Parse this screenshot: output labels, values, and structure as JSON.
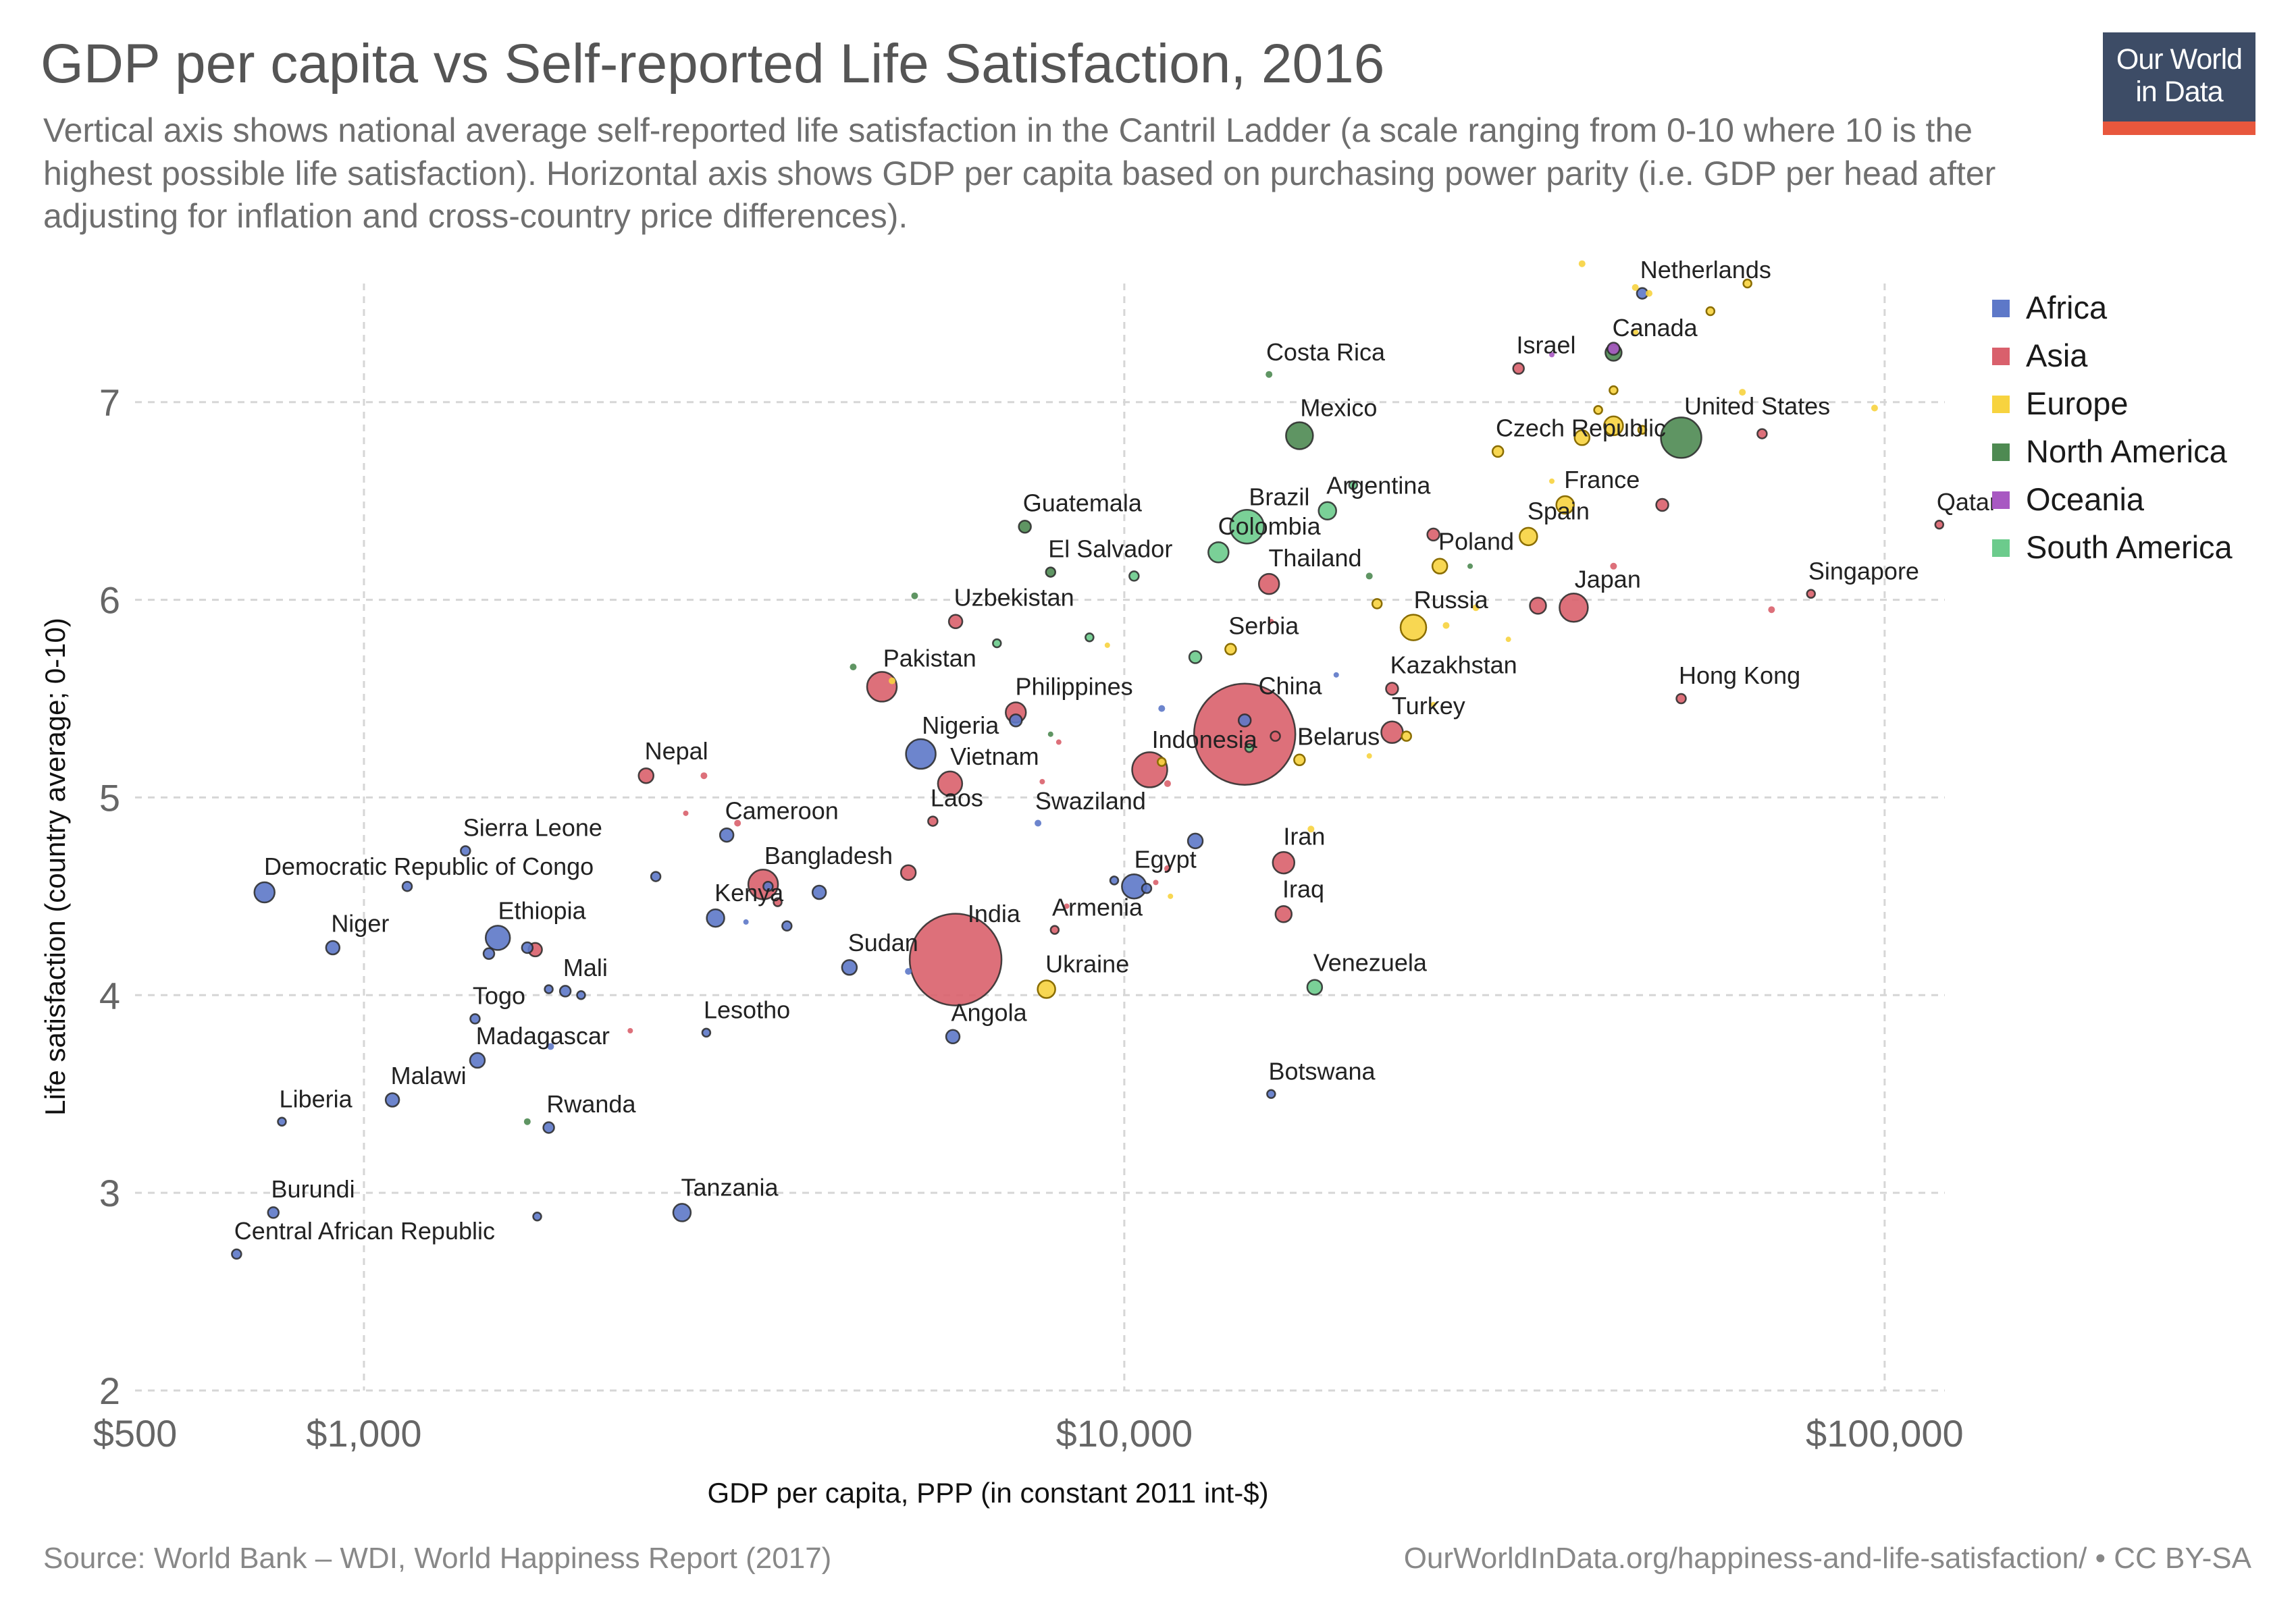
{
  "title": "GDP per capita vs Self-reported Life Satisfaction, 2016",
  "subtitle": "Vertical axis shows national average self-reported life satisfaction in the Cantril Ladder (a scale ranging from 0-10 where 10 is the highest possible life satisfaction). Horizontal axis shows GDP per capita based on purchasing power parity (i.e. GDP per head after adjusting for inflation and cross-country price differences).",
  "logo": {
    "line1": "Our World",
    "line2": "in Data"
  },
  "source": "Source: World Bank – WDI, World Happiness Report (2017)",
  "url": "OurWorldInData.org/happiness-and-life-satisfaction/ • CC BY-SA",
  "chart_data": {
    "type": "scatter",
    "title": "GDP per capita vs Self-reported Life Satisfaction, 2016",
    "xlabel": "GDP per capita, PPP (in constant 2011 int-$)",
    "ylabel": "Life satisfaction (country average; 0-10)",
    "x_scale": "log",
    "xlim": [
      500,
      120000
    ],
    "ylim": [
      2,
      7.6
    ],
    "x_ticks": [
      {
        "value": 500,
        "label": "$500"
      },
      {
        "value": 1000,
        "label": "$1,000"
      },
      {
        "value": 10000,
        "label": "$10,000"
      },
      {
        "value": 100000,
        "label": "$100,000"
      }
    ],
    "y_ticks": [
      {
        "value": 2,
        "label": "2"
      },
      {
        "value": 3,
        "label": "3"
      },
      {
        "value": 4,
        "label": "4"
      },
      {
        "value": 5,
        "label": "5"
      },
      {
        "value": 6,
        "label": "6"
      },
      {
        "value": 7,
        "label": "7"
      }
    ],
    "grid": true,
    "legend_position": "top-right",
    "series": [
      {
        "name": "Africa",
        "color": "#5d78c8"
      },
      {
        "name": "Asia",
        "color": "#d9606c"
      },
      {
        "name": "Europe",
        "color": "#f7d33f"
      },
      {
        "name": "North America",
        "color": "#4e8a52"
      },
      {
        "name": "Oceania",
        "color": "#a858c2"
      },
      {
        "name": "South America",
        "color": "#6ccb8c"
      }
    ],
    "points": [
      {
        "label": "Netherlands",
        "x": 48000,
        "y": 7.55,
        "s": 0,
        "size": 8
      },
      {
        "label": "Canada",
        "x": 44000,
        "y": 7.25,
        "s": 3,
        "size": 12
      },
      {
        "label": "Israel",
        "x": 33000,
        "y": 7.17,
        "s": 1,
        "size": 8
      },
      {
        "label": "Costa Rica",
        "x": 15500,
        "y": 7.14,
        "s": 3,
        "size": 5
      },
      {
        "label": "United States",
        "x": 54000,
        "y": 6.82,
        "s": 3,
        "size": 30
      },
      {
        "label": "Mexico",
        "x": 17000,
        "y": 6.83,
        "s": 3,
        "size": 20
      },
      {
        "label": "Czech Republic",
        "x": 31000,
        "y": 6.75,
        "s": 2,
        "size": 8
      },
      {
        "label": "Argentina",
        "x": 18500,
        "y": 6.45,
        "s": 5,
        "size": 13
      },
      {
        "label": "Brazil",
        "x": 14500,
        "y": 6.37,
        "s": 5,
        "size": 25
      },
      {
        "label": "Guatemala",
        "x": 7400,
        "y": 6.37,
        "s": 3,
        "size": 9
      },
      {
        "label": "France",
        "x": 38000,
        "y": 6.48,
        "s": 2,
        "size": 13
      },
      {
        "label": "Spain",
        "x": 34000,
        "y": 6.32,
        "s": 2,
        "size": 13
      },
      {
        "label": "Colombia",
        "x": 13300,
        "y": 6.24,
        "s": 5,
        "size": 15
      },
      {
        "label": "El Salvador",
        "x": 8000,
        "y": 6.14,
        "s": 3,
        "size": 7
      },
      {
        "label": "Poland",
        "x": 26000,
        "y": 6.17,
        "s": 2,
        "size": 11
      },
      {
        "label": "Thailand",
        "x": 15500,
        "y": 6.08,
        "s": 1,
        "size": 15
      },
      {
        "label": "Japan",
        "x": 39000,
        "y": 5.96,
        "s": 1,
        "size": 21
      },
      {
        "label": "Singapore",
        "x": 80000,
        "y": 6.03,
        "s": 1,
        "size": 6
      },
      {
        "label": "Qatar",
        "x": 118000,
        "y": 6.38,
        "s": 1,
        "size": 6
      },
      {
        "label": "Russia",
        "x": 24000,
        "y": 5.86,
        "s": 2,
        "size": 19
      },
      {
        "label": "Uzbekistan",
        "x": 6000,
        "y": 5.89,
        "s": 1,
        "size": 10
      },
      {
        "label": "Serbia",
        "x": 13800,
        "y": 5.75,
        "s": 2,
        "size": 8
      },
      {
        "label": "Pakistan",
        "x": 4800,
        "y": 5.56,
        "s": 1,
        "size": 22
      },
      {
        "label": "Kazakhstan",
        "x": 22500,
        "y": 5.55,
        "s": 1,
        "size": 9
      },
      {
        "label": "Hong Kong",
        "x": 54000,
        "y": 5.5,
        "s": 1,
        "size": 7
      },
      {
        "label": "Philippines",
        "x": 7200,
        "y": 5.43,
        "s": 1,
        "size": 15
      },
      {
        "label": "China",
        "x": 14400,
        "y": 5.32,
        "s": 1,
        "size": 75
      },
      {
        "label": "Turkey",
        "x": 22500,
        "y": 5.33,
        "s": 1,
        "size": 16
      },
      {
        "label": "Nigeria",
        "x": 5400,
        "y": 5.22,
        "s": 0,
        "size": 22
      },
      {
        "label": "Belarus",
        "x": 17000,
        "y": 5.19,
        "s": 2,
        "size": 8
      },
      {
        "label": "Indonesia",
        "x": 10800,
        "y": 5.14,
        "s": 1,
        "size": 26
      },
      {
        "label": "Nepal",
        "x": 2350,
        "y": 5.11,
        "s": 1,
        "size": 11
      },
      {
        "label": "Vietnam",
        "x": 5900,
        "y": 5.07,
        "s": 1,
        "size": 18
      },
      {
        "label": "Laos",
        "x": 5600,
        "y": 4.88,
        "s": 1,
        "size": 7
      },
      {
        "label": "Swaziland",
        "x": 7700,
        "y": 4.87,
        "s": 0,
        "size": 5
      },
      {
        "label": "Cameroon",
        "x": 3000,
        "y": 4.81,
        "s": 0,
        "size": 10
      },
      {
        "label": "Sierra Leone",
        "x": 1360,
        "y": 4.73,
        "s": 0,
        "size": 7
      },
      {
        "label": "Iran",
        "x": 16200,
        "y": 4.67,
        "s": 1,
        "size": 16
      },
      {
        "label": "Egypt",
        "x": 10300,
        "y": 4.55,
        "s": 0,
        "size": 18
      },
      {
        "label": "Bangladesh",
        "x": 3350,
        "y": 4.56,
        "s": 1,
        "size": 22
      },
      {
        "label": "Democratic Republic of Congo",
        "x": 740,
        "y": 4.52,
        "s": 0,
        "size": 15
      },
      {
        "label": "Kenya",
        "x": 2900,
        "y": 4.39,
        "s": 0,
        "size": 13
      },
      {
        "label": "Iraq",
        "x": 16200,
        "y": 4.41,
        "s": 1,
        "size": 12
      },
      {
        "label": "India",
        "x": 6000,
        "y": 4.18,
        "s": 1,
        "size": 68
      },
      {
        "label": "Ethiopia",
        "x": 1500,
        "y": 4.29,
        "s": 0,
        "size": 18
      },
      {
        "label": "Armenia",
        "x": 8100,
        "y": 4.33,
        "s": 1,
        "size": 6
      },
      {
        "label": "Niger",
        "x": 910,
        "y": 4.24,
        "s": 0,
        "size": 10
      },
      {
        "label": "Sudan",
        "x": 4350,
        "y": 4.14,
        "s": 0,
        "size": 11
      },
      {
        "label": "Venezuela",
        "x": 17800,
        "y": 4.04,
        "s": 5,
        "size": 11
      },
      {
        "label": "Mali",
        "x": 1840,
        "y": 4.02,
        "s": 0,
        "size": 8
      },
      {
        "label": "Ukraine",
        "x": 7900,
        "y": 4.03,
        "s": 2,
        "size": 13
      },
      {
        "label": "Togo",
        "x": 1400,
        "y": 3.88,
        "s": 0,
        "size": 7
      },
      {
        "label": "Lesotho",
        "x": 2820,
        "y": 3.81,
        "s": 0,
        "size": 6
      },
      {
        "label": "Angola",
        "x": 5950,
        "y": 3.79,
        "s": 0,
        "size": 10
      },
      {
        "label": "Madagascar",
        "x": 1410,
        "y": 3.67,
        "s": 0,
        "size": 11
      },
      {
        "label": "Malawi",
        "x": 1090,
        "y": 3.47,
        "s": 0,
        "size": 10
      },
      {
        "label": "Botswana",
        "x": 15600,
        "y": 3.5,
        "s": 0,
        "size": 6
      },
      {
        "label": "Liberia",
        "x": 780,
        "y": 3.36,
        "s": 0,
        "size": 6
      },
      {
        "label": "Rwanda",
        "x": 1750,
        "y": 3.33,
        "s": 0,
        "size": 8
      },
      {
        "label": "Tanzania",
        "x": 2620,
        "y": 2.9,
        "s": 0,
        "size": 13
      },
      {
        "label": "Burundi",
        "x": 760,
        "y": 2.9,
        "s": 0,
        "size": 8
      },
      {
        "label": "Central African Republic",
        "x": 680,
        "y": 2.69,
        "s": 0,
        "size": 7
      },
      {
        "label": "",
        "x": 40000,
        "y": 7.7,
        "s": 2,
        "size": 5
      },
      {
        "label": "",
        "x": 47000,
        "y": 7.58,
        "s": 2,
        "size": 5
      },
      {
        "label": "",
        "x": 49000,
        "y": 7.55,
        "s": 2,
        "size": 5
      },
      {
        "label": "",
        "x": 66000,
        "y": 7.6,
        "s": 2,
        "size": 6
      },
      {
        "label": "",
        "x": 59000,
        "y": 7.46,
        "s": 2,
        "size": 6
      },
      {
        "label": "",
        "x": 44000,
        "y": 7.27,
        "s": 4,
        "size": 9
      },
      {
        "label": "",
        "x": 47000,
        "y": 7.35,
        "s": 2,
        "size": 5
      },
      {
        "label": "",
        "x": 36500,
        "y": 7.24,
        "s": 4,
        "size": 4
      },
      {
        "label": "",
        "x": 44000,
        "y": 7.06,
        "s": 2,
        "size": 6
      },
      {
        "label": "",
        "x": 65000,
        "y": 7.05,
        "s": 2,
        "size": 5
      },
      {
        "label": "",
        "x": 42000,
        "y": 6.96,
        "s": 2,
        "size": 6
      },
      {
        "label": "",
        "x": 40000,
        "y": 6.82,
        "s": 2,
        "size": 11
      },
      {
        "label": "",
        "x": 44000,
        "y": 6.88,
        "s": 2,
        "size": 14
      },
      {
        "label": "",
        "x": 48000,
        "y": 6.86,
        "s": 2,
        "size": 6
      },
      {
        "label": "",
        "x": 69000,
        "y": 6.84,
        "s": 1,
        "size": 7
      },
      {
        "label": "",
        "x": 97000,
        "y": 6.97,
        "s": 2,
        "size": 5
      },
      {
        "label": "",
        "x": 36500,
        "y": 6.6,
        "s": 2,
        "size": 4
      },
      {
        "label": "",
        "x": 51000,
        "y": 6.48,
        "s": 1,
        "size": 9
      },
      {
        "label": "",
        "x": 20000,
        "y": 6.58,
        "s": 5,
        "size": 6
      },
      {
        "label": "",
        "x": 25500,
        "y": 6.33,
        "s": 1,
        "size": 9
      },
      {
        "label": "",
        "x": 28500,
        "y": 6.17,
        "s": 3,
        "size": 4
      },
      {
        "label": "",
        "x": 21000,
        "y": 6.12,
        "s": 3,
        "size": 5
      },
      {
        "label": "",
        "x": 44000,
        "y": 6.17,
        "s": 1,
        "size": 5
      },
      {
        "label": "",
        "x": 10300,
        "y": 6.12,
        "s": 5,
        "size": 7
      },
      {
        "label": "",
        "x": 5300,
        "y": 6.02,
        "s": 3,
        "size": 5
      },
      {
        "label": "",
        "x": 21500,
        "y": 5.98,
        "s": 2,
        "size": 7
      },
      {
        "label": "",
        "x": 35000,
        "y": 5.97,
        "s": 1,
        "size": 12
      },
      {
        "label": "",
        "x": 29000,
        "y": 5.96,
        "s": 2,
        "size": 5
      },
      {
        "label": "",
        "x": 71000,
        "y": 5.95,
        "s": 1,
        "size": 5
      },
      {
        "label": "",
        "x": 15600,
        "y": 5.89,
        "s": 1,
        "size": 4
      },
      {
        "label": "",
        "x": 26500,
        "y": 5.87,
        "s": 2,
        "size": 5
      },
      {
        "label": "",
        "x": 32000,
        "y": 5.8,
        "s": 2,
        "size": 4
      },
      {
        "label": "",
        "x": 9000,
        "y": 5.81,
        "s": 5,
        "size": 6
      },
      {
        "label": "",
        "x": 9500,
        "y": 5.77,
        "s": 2,
        "size": 4
      },
      {
        "label": "",
        "x": 6800,
        "y": 5.78,
        "s": 5,
        "size": 6
      },
      {
        "label": "",
        "x": 12400,
        "y": 5.71,
        "s": 5,
        "size": 9
      },
      {
        "label": "",
        "x": 4400,
        "y": 5.66,
        "s": 3,
        "size": 5
      },
      {
        "label": "",
        "x": 19000,
        "y": 5.62,
        "s": 0,
        "size": 4
      },
      {
        "label": "",
        "x": 4950,
        "y": 5.59,
        "s": 2,
        "size": 5
      },
      {
        "label": "",
        "x": 11200,
        "y": 5.45,
        "s": 0,
        "size": 5
      },
      {
        "label": "",
        "x": 25500,
        "y": 5.47,
        "s": 2,
        "size": 4
      },
      {
        "label": "",
        "x": 7200,
        "y": 5.39,
        "s": 0,
        "size": 9
      },
      {
        "label": "",
        "x": 14400,
        "y": 5.39,
        "s": 0,
        "size": 9
      },
      {
        "label": "",
        "x": 8000,
        "y": 5.32,
        "s": 3,
        "size": 4
      },
      {
        "label": "",
        "x": 8200,
        "y": 5.28,
        "s": 1,
        "size": 4
      },
      {
        "label": "",
        "x": 15800,
        "y": 5.31,
        "s": 1,
        "size": 7
      },
      {
        "label": "",
        "x": 23500,
        "y": 5.31,
        "s": 2,
        "size": 7
      },
      {
        "label": "",
        "x": 14600,
        "y": 5.25,
        "s": 5,
        "size": 6
      },
      {
        "label": "",
        "x": 21000,
        "y": 5.21,
        "s": 2,
        "size": 4
      },
      {
        "label": "",
        "x": 11200,
        "y": 5.18,
        "s": 2,
        "size": 6
      },
      {
        "label": "",
        "x": 2800,
        "y": 5.11,
        "s": 1,
        "size": 5
      },
      {
        "label": "",
        "x": 7800,
        "y": 5.08,
        "s": 1,
        "size": 4
      },
      {
        "label": "",
        "x": 11400,
        "y": 5.07,
        "s": 1,
        "size": 5
      },
      {
        "label": "",
        "x": 2650,
        "y": 4.92,
        "s": 1,
        "size": 4
      },
      {
        "label": "",
        "x": 3100,
        "y": 4.87,
        "s": 1,
        "size": 5
      },
      {
        "label": "",
        "x": 12400,
        "y": 4.78,
        "s": 0,
        "size": 11
      },
      {
        "label": "",
        "x": 17600,
        "y": 4.84,
        "s": 2,
        "size": 5
      },
      {
        "label": "",
        "x": 11400,
        "y": 4.64,
        "s": 1,
        "size": 5
      },
      {
        "label": "",
        "x": 11000,
        "y": 4.57,
        "s": 1,
        "size": 4
      },
      {
        "label": "",
        "x": 5200,
        "y": 4.62,
        "s": 1,
        "size": 11
      },
      {
        "label": "",
        "x": 2420,
        "y": 4.6,
        "s": 0,
        "size": 7
      },
      {
        "label": "",
        "x": 1140,
        "y": 4.55,
        "s": 0,
        "size": 7
      },
      {
        "label": "",
        "x": 3970,
        "y": 4.52,
        "s": 0,
        "size": 10
      },
      {
        "label": "",
        "x": 9700,
        "y": 4.58,
        "s": 0,
        "size": 6
      },
      {
        "label": "",
        "x": 10700,
        "y": 4.54,
        "s": 0,
        "size": 7
      },
      {
        "label": "",
        "x": 11500,
        "y": 4.5,
        "s": 2,
        "size": 4
      },
      {
        "label": "",
        "x": 3400,
        "y": 4.55,
        "s": 0,
        "size": 7
      },
      {
        "label": "",
        "x": 3500,
        "y": 4.47,
        "s": 1,
        "size": 6
      },
      {
        "label": "",
        "x": 3600,
        "y": 4.35,
        "s": 0,
        "size": 7
      },
      {
        "label": "",
        "x": 3180,
        "y": 4.37,
        "s": 0,
        "size": 4
      },
      {
        "label": "",
        "x": 8400,
        "y": 4.45,
        "s": 1,
        "size": 4
      },
      {
        "label": "",
        "x": 1640,
        "y": 4.24,
        "s": 0,
        "size": 8
      },
      {
        "label": "",
        "x": 1680,
        "y": 4.23,
        "s": 1,
        "size": 10
      },
      {
        "label": "",
        "x": 1460,
        "y": 4.21,
        "s": 0,
        "size": 8
      },
      {
        "label": "",
        "x": 5200,
        "y": 4.12,
        "s": 0,
        "size": 5
      },
      {
        "label": "",
        "x": 1750,
        "y": 4.03,
        "s": 0,
        "size": 6
      },
      {
        "label": "",
        "x": 1930,
        "y": 4.0,
        "s": 0,
        "size": 6
      },
      {
        "label": "",
        "x": 2240,
        "y": 3.82,
        "s": 1,
        "size": 4
      },
      {
        "label": "",
        "x": 1760,
        "y": 3.74,
        "s": 0,
        "size": 5
      },
      {
        "label": "",
        "x": 1640,
        "y": 3.36,
        "s": 3,
        "size": 5
      },
      {
        "label": "",
        "x": 1690,
        "y": 2.88,
        "s": 0,
        "size": 6
      }
    ]
  }
}
